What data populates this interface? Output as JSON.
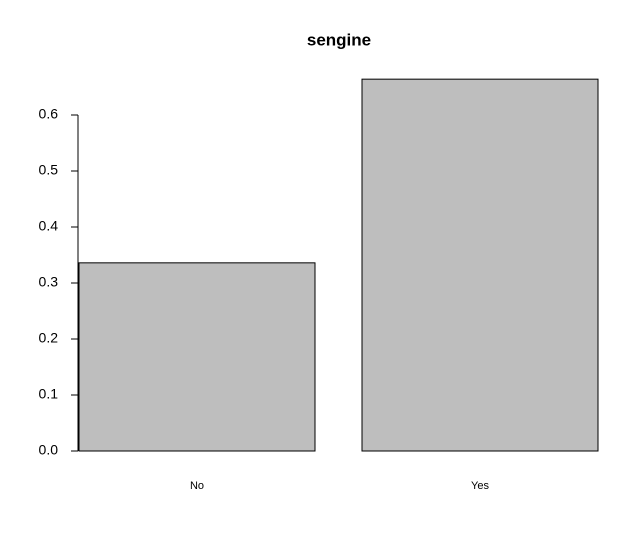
{
  "chart_data": {
    "type": "bar",
    "title": "sengine",
    "categories": [
      "No",
      "Yes"
    ],
    "values": [
      0.336,
      0.664
    ],
    "color": "#bebebe",
    "ylim": [
      0,
      0.7
    ],
    "yticks": [
      {
        "value": 0,
        "label": "0.0"
      },
      0.1,
      0.2,
      0.3,
      0.4,
      0.5,
      0.6
    ]
  }
}
